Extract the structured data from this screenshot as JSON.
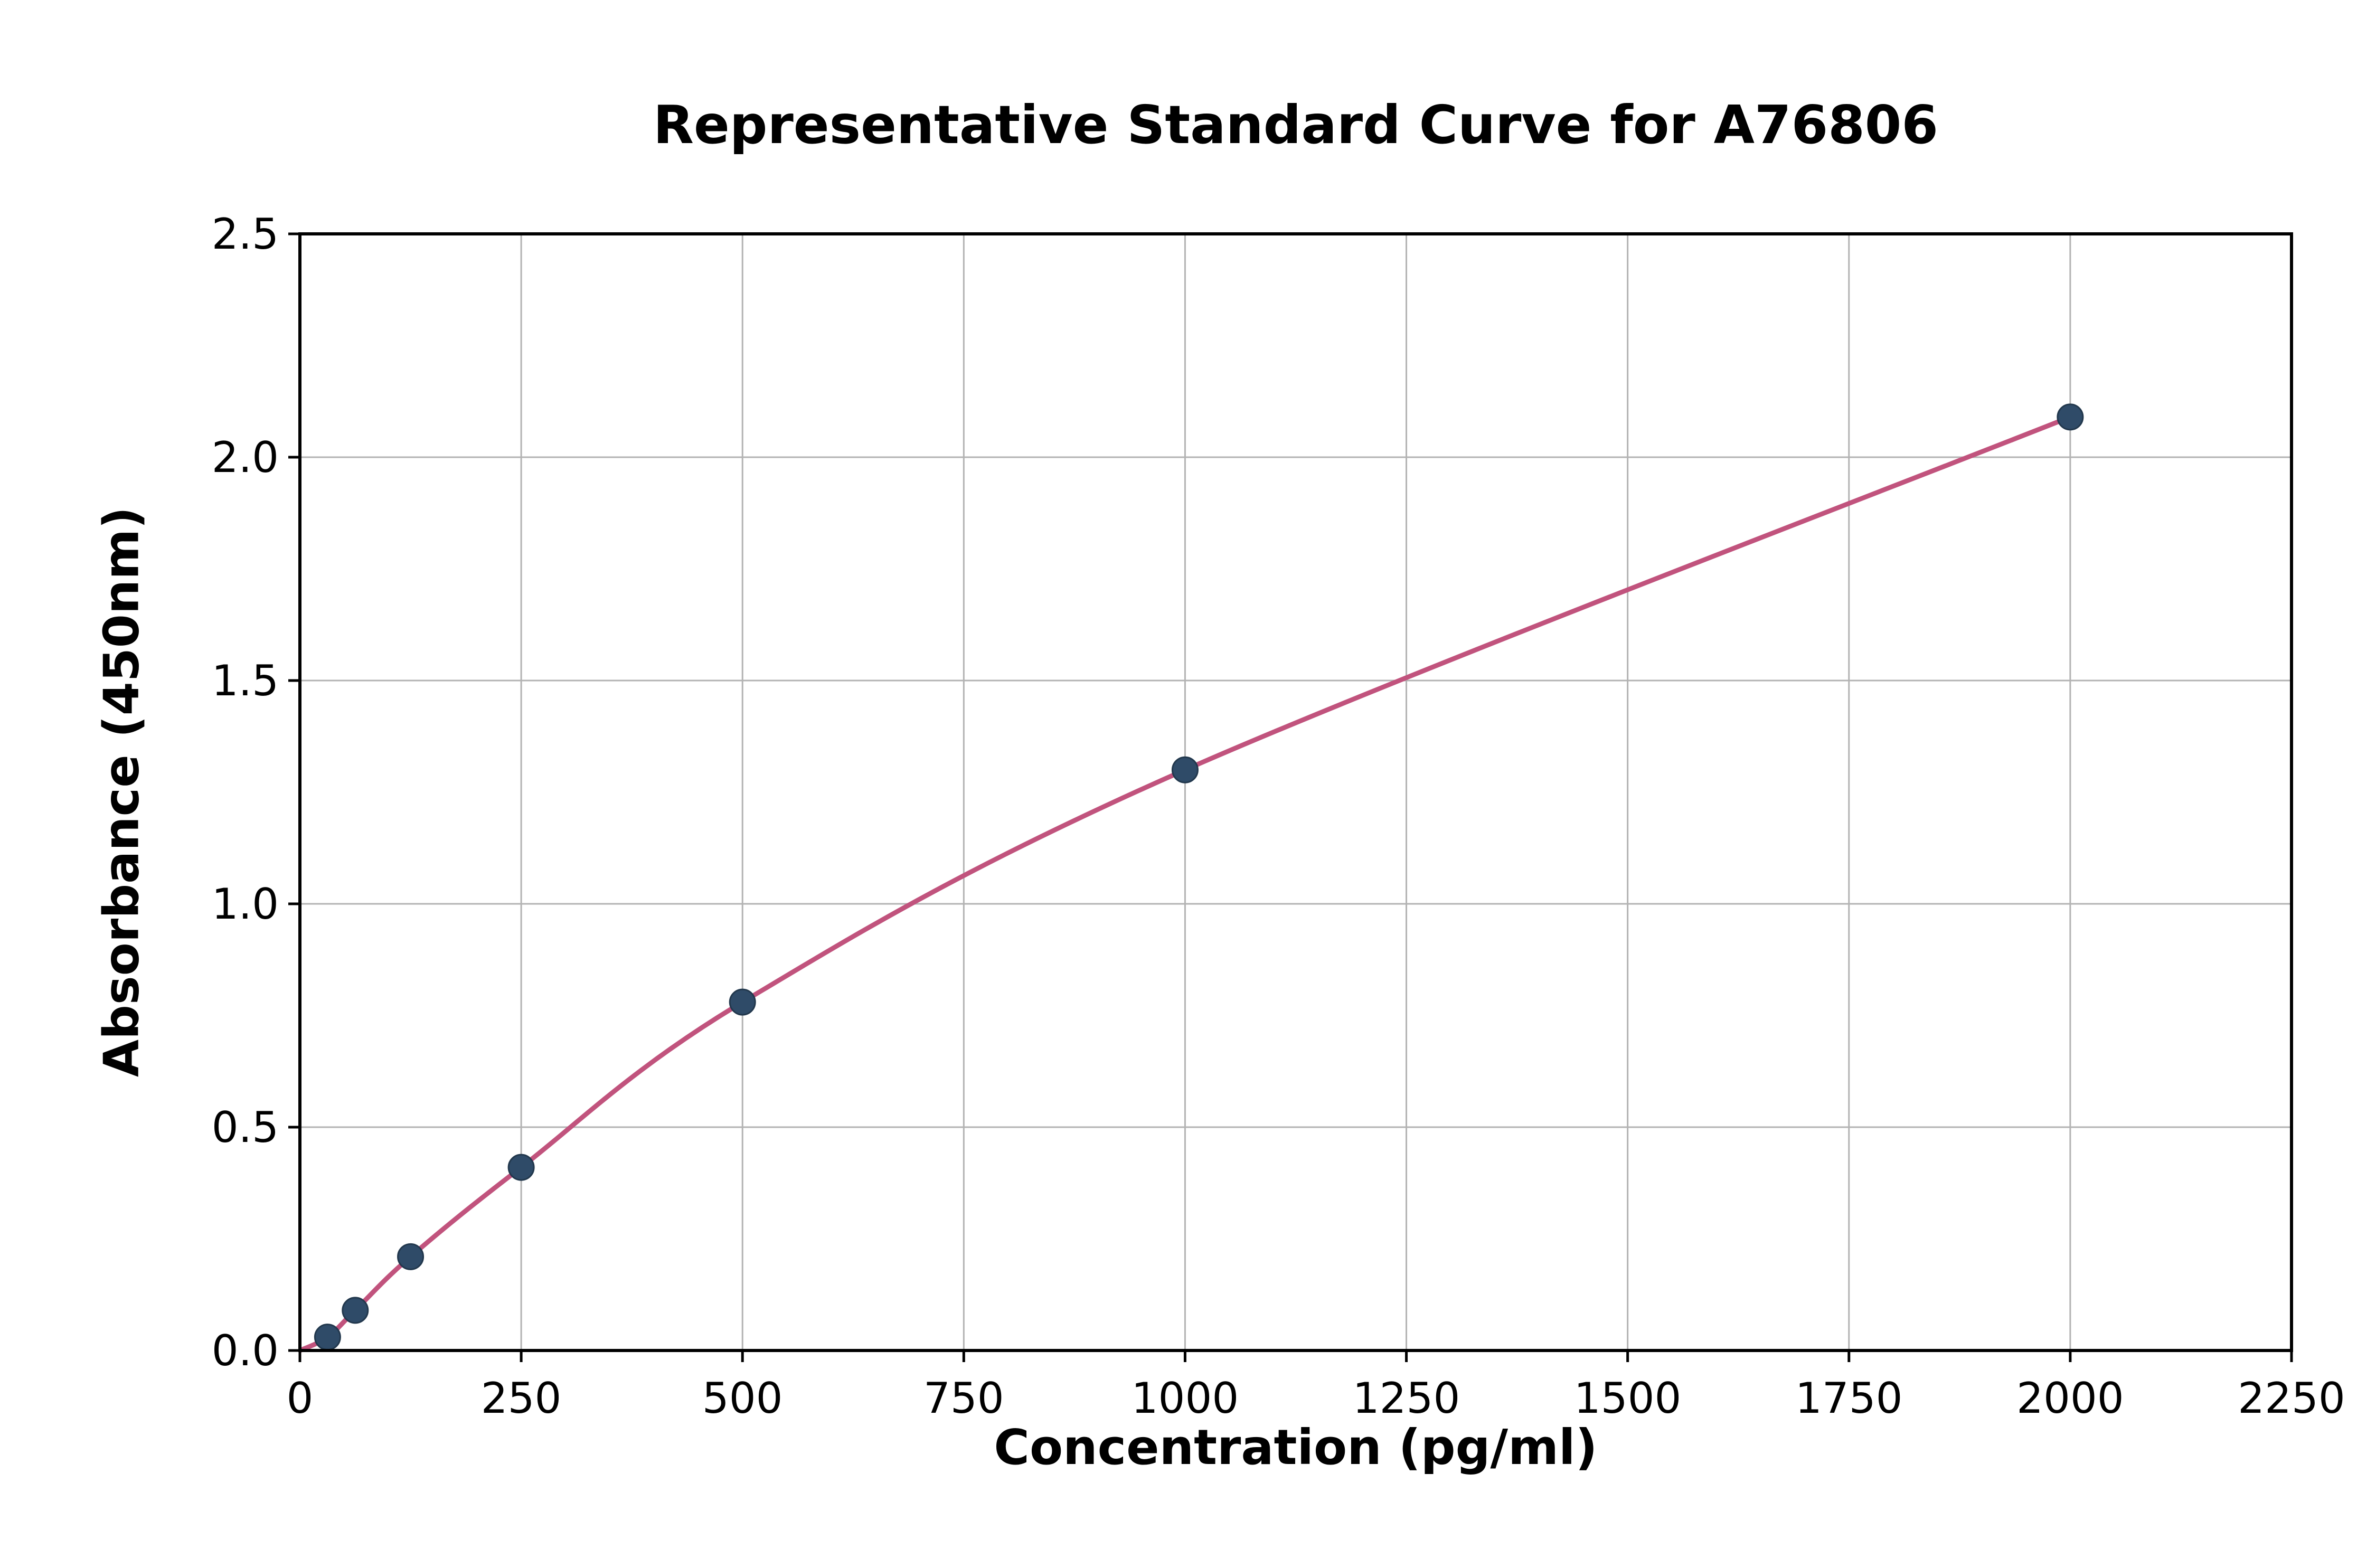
{
  "chart_data": {
    "type": "scatter",
    "title": "Representative Standard Curve for A76806",
    "xlabel": "Concentration (pg/ml)",
    "ylabel": "Absorbance (450nm)",
    "x": [
      31.25,
      62.5,
      125,
      250,
      500,
      1000,
      2000
    ],
    "y": [
      0.03,
      0.09,
      0.21,
      0.41,
      0.78,
      1.3,
      2.09
    ],
    "curve_start": [
      0,
      0
    ],
    "xlim": [
      0,
      2250
    ],
    "ylim": [
      0,
      2.5
    ],
    "xticks": [
      0,
      250,
      500,
      750,
      1000,
      1250,
      1500,
      1750,
      2000,
      2250
    ],
    "xtick_labels": [
      "0",
      "250",
      "500",
      "750",
      "1000",
      "1250",
      "1500",
      "1750",
      "2000",
      "2250"
    ],
    "yticks": [
      0.0,
      0.5,
      1.0,
      1.5,
      2.0,
      2.5
    ],
    "ytick_labels": [
      "0.0",
      "0.5",
      "1.0",
      "1.5",
      "2.0",
      "2.5"
    ],
    "grid": true,
    "legend": "none",
    "marker_color": "#2f4b68",
    "marker_edge_color": "#22384d",
    "line_color": "#c1537d",
    "grid_color": "#b3b3b3",
    "axis_color": "#000000",
    "background_color": "#ffffff"
  }
}
